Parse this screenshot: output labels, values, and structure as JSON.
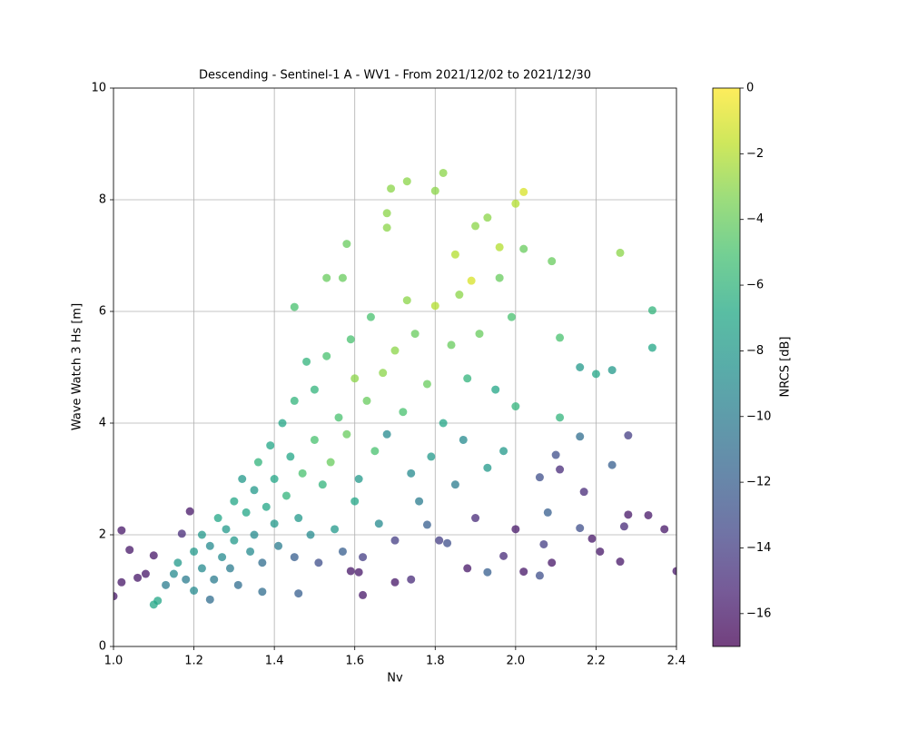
{
  "chart_data": {
    "type": "scatter",
    "title": "Descending - Sentinel-1 A - WV1 - From 2021/12/02 to 2021/12/30",
    "xlabel": "Nv",
    "ylabel": "Wave Watch 3 Hs [m]",
    "colorbar_label": "NRCS [dB]",
    "colormap": "viridis",
    "grid": true,
    "xlim": [
      1.0,
      2.4
    ],
    "ylim": [
      0,
      10
    ],
    "clim": [
      -17,
      0
    ],
    "xticks": [
      {
        "value": 1,
        "label": "1.0"
      },
      1.2,
      1.4,
      1.6,
      1.8,
      {
        "value": 2,
        "label": "2.0"
      },
      2.2,
      2.4
    ],
    "yticks": [
      0,
      2,
      4,
      6,
      8,
      10
    ],
    "cticks": [
      {
        "value": 0,
        "label": "0"
      },
      {
        "value": -2,
        "label": "−2"
      },
      {
        "value": -4,
        "label": "−4"
      },
      {
        "value": -6,
        "label": "−6"
      },
      {
        "value": -8,
        "label": "−8"
      },
      {
        "value": -10,
        "label": "−10"
      },
      {
        "value": -12,
        "label": "−12"
      },
      {
        "value": -14,
        "label": "−14"
      },
      {
        "value": -16,
        "label": "−16"
      }
    ],
    "x": [
      1.0,
      1.02,
      1.02,
      1.04,
      1.06,
      1.08,
      1.1,
      1.1,
      1.11,
      1.19,
      1.17,
      1.24,
      1.73,
      1.82,
      1.69,
      1.8,
      2.02,
      2.0,
      1.68,
      1.58,
      1.68,
      2.09,
      2.26,
      2.34,
      2.34,
      1.45,
      1.53,
      1.57,
      1.96,
      1.9,
      1.93,
      1.85,
      1.89,
      2.02,
      2.11,
      2.2,
      2.24,
      2.16,
      2.11,
      2.16,
      2.28,
      2.24,
      2.17,
      2.28,
      2.33,
      2.37,
      2.4,
      2.27,
      2.26,
      2.21,
      2.19,
      2.16,
      2.11,
      2.1,
      2.06,
      2.08,
      2.07,
      2.06,
      2.09,
      2.02,
      1.97,
      1.93,
      1.88,
      1.83,
      1.78,
      1.74,
      1.7,
      1.62,
      1.61,
      1.46,
      1.37,
      1.59,
      1.13,
      1.15,
      1.16,
      1.18,
      1.2,
      1.2,
      1.22,
      1.22,
      1.24,
      1.25,
      1.26,
      1.27,
      1.28,
      1.29,
      1.3,
      1.3,
      1.31,
      1.32,
      1.33,
      1.34,
      1.35,
      1.35,
      1.36,
      1.37,
      1.38,
      1.39,
      1.4,
      1.4,
      1.41,
      1.42,
      1.43,
      1.44,
      1.45,
      1.45,
      1.46,
      1.47,
      1.48,
      1.49,
      1.5,
      1.5,
      1.51,
      1.52,
      1.53,
      1.54,
      1.55,
      1.56,
      1.57,
      1.58,
      1.59,
      1.6,
      1.6,
      1.61,
      1.62,
      1.63,
      1.64,
      1.65,
      1.66,
      1.67,
      1.68,
      1.7,
      1.7,
      1.72,
      1.73,
      1.74,
      1.75,
      1.76,
      1.78,
      1.79,
      1.8,
      1.81,
      1.82,
      1.84,
      1.85,
      1.86,
      1.87,
      1.88,
      1.9,
      1.91,
      1.93,
      1.95,
      1.96,
      1.97,
      1.99,
      2.0,
      2.0
    ],
    "y": [
      0.9,
      2.08,
      1.15,
      1.73,
      1.23,
      1.3,
      1.63,
      0.75,
      0.82,
      2.42,
      2.02,
      0.84,
      8.33,
      8.48,
      8.2,
      8.16,
      8.14,
      7.93,
      7.76,
      7.21,
      7.5,
      6.9,
      7.05,
      6.02,
      5.35,
      6.08,
      6.6,
      6.6,
      7.15,
      7.53,
      7.68,
      7.02,
      6.55,
      7.12,
      5.53,
      4.88,
      4.95,
      5.0,
      4.1,
      3.76,
      3.78,
      3.25,
      2.77,
      2.36,
      2.35,
      2.1,
      1.35,
      2.15,
      1.52,
      1.7,
      1.93,
      2.12,
      3.17,
      3.43,
      3.03,
      2.4,
      1.83,
      1.27,
      1.5,
      1.34,
      1.62,
      1.33,
      1.4,
      1.85,
      2.18,
      1.2,
      1.15,
      0.92,
      1.33,
      0.95,
      0.98,
      1.35,
      1.1,
      1.3,
      1.5,
      1.2,
      1.7,
      1.0,
      1.4,
      2.0,
      1.8,
      1.2,
      2.3,
      1.6,
      2.1,
      1.4,
      2.6,
      1.9,
      1.1,
      3.0,
      2.4,
      1.7,
      2.8,
      2.0,
      3.3,
      1.5,
      2.5,
      3.6,
      2.2,
      3.0,
      1.8,
      4.0,
      2.7,
      3.4,
      1.6,
      4.4,
      2.3,
      3.1,
      5.1,
      2.0,
      3.7,
      4.6,
      1.5,
      2.9,
      5.2,
      3.3,
      2.1,
      4.1,
      1.7,
      3.8,
      5.5,
      2.6,
      4.8,
      3.0,
      1.6,
      4.4,
      5.9,
      3.5,
      2.2,
      4.9,
      3.8,
      5.3,
      1.9,
      4.2,
      6.2,
      3.1,
      5.6,
      2.6,
      4.7,
      3.4,
      6.1,
      1.9,
      4.0,
      5.4,
      2.9,
      6.3,
      3.7,
      4.8,
      2.3,
      5.6,
      3.2,
      4.6,
      6.6,
      3.5,
      5.9,
      2.1,
      4.3
    ],
    "c": [
      -16,
      -16,
      -16,
      -16,
      -16,
      -16,
      -16,
      -7,
      -7,
      -16,
      -15,
      -11,
      -3,
      -3,
      -3,
      -3,
      -1,
      -2,
      -3,
      -4,
      -3,
      -4,
      -3,
      -6,
      -7,
      -5,
      -4,
      -4,
      -2,
      -3,
      -3,
      -2,
      -1,
      -4,
      -5,
      -7,
      -8,
      -8,
      -6,
      -11,
      -14,
      -12,
      -15,
      -16,
      -16,
      -16,
      -16,
      -15,
      -16,
      -16,
      -16,
      -13,
      -15,
      -13,
      -13,
      -12,
      -14,
      -13,
      -16,
      -16,
      -15,
      -12,
      -16,
      -13,
      -12,
      -15,
      -16,
      -16,
      -16,
      -12,
      -11,
      -16,
      -10,
      -9,
      -8,
      -10,
      -8,
      -9,
      -9,
      -8,
      -9,
      -10,
      -7,
      -9,
      -8,
      -10,
      -7,
      -8,
      -11,
      -8,
      -7,
      -9,
      -8,
      -9,
      -6,
      -11,
      -7,
      -7,
      -8,
      -7,
      -10,
      -7,
      -6,
      -7,
      -12,
      -6,
      -8,
      -5,
      -6,
      -9,
      -5,
      -6,
      -13,
      -6,
      -5,
      -4,
      -8,
      -5,
      -12,
      -4,
      -5,
      -7,
      -3,
      -8,
      -14,
      -4,
      -5,
      -5,
      -9,
      -3,
      -9,
      -3,
      -14,
      -5,
      -3,
      -9,
      -4,
      -10,
      -4,
      -8,
      -2,
      -14,
      -7,
      -4,
      -10,
      -3,
      -9,
      -6,
      -15,
      -4,
      -8,
      -7,
      -4,
      -8,
      -5,
      -16,
      -6
    ]
  }
}
